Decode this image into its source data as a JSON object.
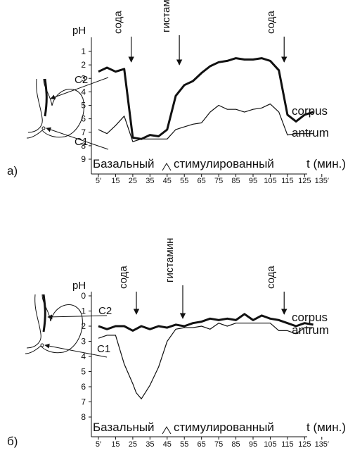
{
  "chart_data": [
    {
      "panel_label": "а)",
      "type": "line",
      "ylabel": "pH",
      "xlabel": "t (мин.)",
      "y_ticks": [
        "1",
        "2",
        "3",
        "4",
        "5",
        "6",
        "7",
        "8",
        "9"
      ],
      "ylim": [
        0.5,
        9.5
      ],
      "y_inverted": true,
      "x_ticks": [
        "5′",
        "15",
        "25",
        "35",
        "45",
        "55",
        "65",
        "75",
        "85",
        "95",
        "105",
        "115",
        "125",
        "135′"
      ],
      "phase_labels": {
        "basal": "Базальный",
        "stimulated": "стимулированный"
      },
      "annotations": [
        {
          "text": "сода",
          "x": 20,
          "y": 0.8
        },
        {
          "text": "гистамин",
          "x": 48,
          "y": 0.3
        },
        {
          "text": "сода",
          "x": 109,
          "y": 0.8
        }
      ],
      "stomach_labels": [
        "C2",
        "C1"
      ],
      "series": [
        {
          "name": "corpus",
          "x": [
            5,
            10,
            15,
            20,
            25,
            30,
            35,
            40,
            45,
            50,
            55,
            60,
            65,
            70,
            75,
            80,
            85,
            90,
            95,
            100,
            105,
            110,
            115,
            120,
            125,
            130
          ],
          "y": [
            2.5,
            2.2,
            2.5,
            2.3,
            7.4,
            7.5,
            7.2,
            7.3,
            6.8,
            4.3,
            3.5,
            3.2,
            2.6,
            2.1,
            1.8,
            1.7,
            1.5,
            1.6,
            1.6,
            1.5,
            1.7,
            2.4,
            5.7,
            6.2,
            5.7,
            5.5
          ]
        },
        {
          "name": "antrum",
          "x": [
            5,
            10,
            15,
            20,
            25,
            30,
            35,
            40,
            45,
            50,
            55,
            60,
            65,
            70,
            75,
            80,
            85,
            90,
            95,
            100,
            105,
            110,
            115,
            120,
            125,
            130
          ],
          "y": [
            6.8,
            7.1,
            6.5,
            5.8,
            7.7,
            7.5,
            7.5,
            7.5,
            7.5,
            6.8,
            6.6,
            6.4,
            6.3,
            5.5,
            5.0,
            5.3,
            5.3,
            5.5,
            5.3,
            5.2,
            4.9,
            5.5,
            7.2,
            7.1,
            7.1,
            7.1
          ]
        }
      ]
    },
    {
      "panel_label": "б)",
      "type": "line",
      "ylabel": "pH",
      "xlabel": "t (мин.)",
      "y_ticks": [
        "0",
        "1",
        "2",
        "3",
        "4",
        "5",
        "6",
        "7",
        "8"
      ],
      "ylim": [
        -0.3,
        8.5
      ],
      "y_inverted": true,
      "x_ticks": [
        "5′",
        "15",
        "25",
        "35",
        "45",
        "55",
        "65",
        "75",
        "85",
        "95",
        "105",
        "115",
        "125",
        "135′"
      ],
      "phase_labels": {
        "basal": "Базальный",
        "stimulated": "стимулированный"
      },
      "annotations": [
        {
          "text": "сода",
          "x": 23,
          "y": 0.9
        },
        {
          "text": "гистамин",
          "x": 50,
          "y": 0.8
        },
        {
          "text": "сода",
          "x": 109,
          "y": 0.9
        }
      ],
      "stomach_labels": [
        "C2",
        "C1"
      ],
      "series": [
        {
          "name": "corpus",
          "x": [
            5,
            10,
            15,
            20,
            25,
            30,
            35,
            40,
            45,
            50,
            55,
            60,
            65,
            70,
            75,
            80,
            85,
            90,
            95,
            100,
            105,
            110,
            115,
            120,
            125,
            130
          ],
          "y": [
            2.0,
            2.2,
            2.0,
            2.0,
            2.3,
            2.0,
            2.2,
            2.0,
            2.1,
            1.9,
            2.0,
            1.8,
            1.7,
            1.5,
            1.6,
            1.5,
            1.6,
            1.2,
            1.6,
            1.3,
            1.5,
            1.6,
            1.8,
            2.0,
            1.8,
            1.9
          ]
        },
        {
          "name": "antrum",
          "x": [
            5,
            10,
            15,
            20,
            25,
            27,
            30,
            35,
            40,
            45,
            50,
            55,
            60,
            65,
            70,
            75,
            80,
            85,
            90,
            95,
            100,
            105,
            110,
            115,
            120,
            125,
            130
          ],
          "y": [
            2.8,
            2.6,
            2.6,
            4.5,
            5.8,
            6.4,
            6.8,
            5.9,
            4.7,
            3.0,
            2.2,
            2.1,
            2.1,
            2.0,
            2.2,
            1.8,
            2.0,
            1.8,
            1.8,
            1.8,
            1.8,
            1.8,
            2.3,
            2.3,
            2.5,
            2.1,
            2.1
          ]
        }
      ]
    }
  ]
}
